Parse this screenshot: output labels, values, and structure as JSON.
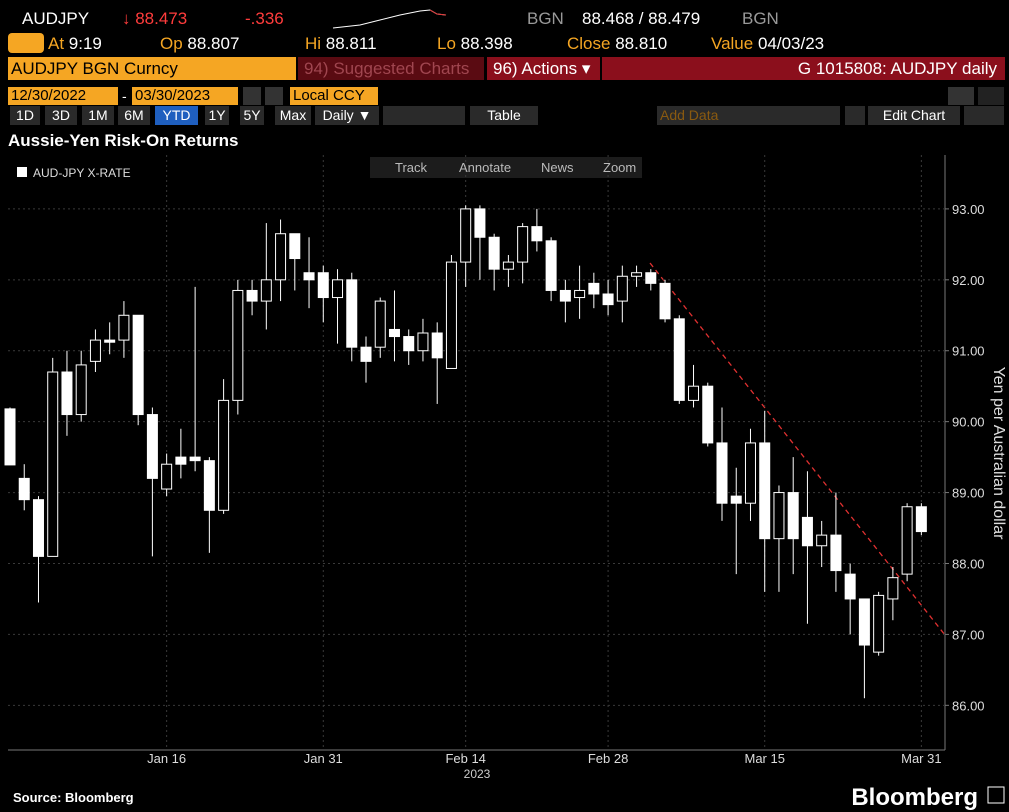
{
  "header": {
    "ticker": "AUDJPY",
    "price": "↓ 88.473",
    "change": "-.336",
    "source": "BGN",
    "bid_ask": "88.468 / 88.479",
    "source2": "BGN",
    "quote_fields": [
      {
        "label": "At",
        "value": "9:19"
      },
      {
        "label": "Op",
        "value": "88.807"
      },
      {
        "label": "Hi",
        "value": "88.811"
      },
      {
        "label": "Lo",
        "value": "88.398"
      },
      {
        "label": "Close",
        "value": "88.810"
      },
      {
        "label": "Value",
        "value": "04/03/23"
      }
    ],
    "security": "AUDJPY BGN Curncy",
    "suggested_num": "94)",
    "suggested": "Suggested Charts",
    "actions_num": "96)",
    "actions": "Actions ▾",
    "chart_id": "G 1015808: AUDJPY daily",
    "start_date": "12/30/2022",
    "date_sep": "-",
    "end_date": "03/30/2023",
    "currency": "Local CCY",
    "periods": [
      "1D",
      "3D",
      "1M",
      "6M",
      "YTD",
      "1Y",
      "5Y",
      "Max"
    ],
    "frequency": "Daily ▼",
    "table": "Table",
    "add_data": "Add Data",
    "edit_chart": "Edit Chart"
  },
  "toolbar": [
    "Track",
    "Annotate",
    "News",
    "Zoom"
  ],
  "chart_data": {
    "type": "candlestick",
    "title": "Aussie-Yen Risk-On Returns",
    "y_label": "Yen per Australian dollar",
    "x_sublabel": "2023",
    "categories": [
      null,
      null,
      null,
      null,
      null,
      null,
      null,
      null,
      null,
      null,
      null,
      "Jan 16",
      null,
      null,
      null,
      null,
      null,
      null,
      null,
      null,
      null,
      null,
      "Jan 31",
      null,
      null,
      null,
      null,
      null,
      null,
      null,
      null,
      null,
      "Feb 14",
      null,
      null,
      null,
      null,
      null,
      null,
      null,
      null,
      null,
      "Feb 28",
      null,
      null,
      null,
      null,
      null,
      null,
      null,
      null,
      null,
      null,
      "Mar 15",
      null,
      null,
      null,
      null,
      null,
      null,
      null,
      null,
      null,
      null,
      "Mar 31"
    ],
    "series": [
      {
        "name": "AUD-JPY X-RATE",
        "color": "#ffffff",
        "open": [
          90.18,
          89.2,
          88.9,
          88.1,
          90.7,
          90.1,
          90.85,
          91.15,
          91.15,
          91.5,
          90.1,
          89.05,
          89.5,
          89.5,
          89.45,
          88.75,
          90.3,
          91.85,
          91.7,
          92.0,
          92.65,
          92.1,
          92.1,
          91.75,
          92.0,
          91.05,
          91.05,
          91.3,
          91.2,
          91.0,
          91.25,
          90.75,
          92.25,
          93.0,
          92.6,
          92.15,
          92.25,
          92.75,
          92.55,
          91.85,
          91.75,
          91.95,
          91.8,
          91.7,
          92.05,
          92.1,
          91.95,
          91.45,
          90.3,
          90.5,
          89.7,
          88.95,
          88.85,
          89.7,
          88.35,
          89.0,
          88.65,
          88.25,
          88.4,
          87.85,
          87.5,
          86.75,
          87.5,
          87.85,
          88.8
        ],
        "high": [
          90.2,
          89.4,
          88.95,
          90.9,
          91.0,
          91.0,
          91.3,
          91.4,
          91.7,
          91.5,
          90.2,
          89.55,
          89.9,
          91.9,
          89.5,
          90.6,
          92.0,
          92.0,
          92.8,
          92.85,
          92.65,
          92.6,
          92.2,
          92.15,
          92.1,
          91.2,
          91.75,
          91.85,
          91.3,
          91.45,
          91.4,
          92.35,
          93.05,
          93.05,
          92.65,
          92.35,
          92.8,
          93.0,
          92.6,
          92.0,
          92.2,
          92.1,
          92.0,
          92.2,
          92.2,
          92.15,
          92.0,
          91.5,
          90.8,
          90.55,
          90.2,
          89.35,
          89.9,
          90.15,
          89.1,
          89.5,
          89.3,
          88.6,
          89.0,
          88.0,
          87.5,
          87.6,
          87.95,
          88.85,
          88.85
        ],
        "low": [
          89.4,
          88.75,
          87.45,
          88.1,
          89.8,
          90.0,
          90.7,
          90.95,
          90.9,
          89.95,
          88.1,
          88.95,
          89.2,
          89.3,
          88.15,
          88.7,
          90.1,
          91.5,
          91.3,
          91.7,
          91.85,
          91.6,
          91.4,
          91.1,
          90.85,
          90.55,
          90.9,
          90.85,
          90.8,
          90.85,
          90.25,
          90.75,
          91.9,
          92.0,
          91.85,
          91.9,
          91.95,
          92.4,
          91.7,
          91.4,
          91.45,
          91.6,
          91.5,
          91.4,
          91.9,
          91.85,
          91.4,
          90.25,
          90.2,
          89.65,
          88.6,
          87.85,
          88.6,
          87.6,
          87.6,
          87.85,
          87.15,
          87.95,
          87.6,
          87.0,
          86.1,
          86.7,
          87.2,
          87.75,
          88.4
        ],
        "close": [
          89.39,
          88.9,
          88.1,
          90.7,
          90.1,
          90.8,
          91.15,
          91.12,
          91.5,
          90.1,
          89.2,
          89.4,
          89.4,
          89.45,
          88.75,
          90.3,
          91.85,
          91.7,
          92.0,
          92.65,
          92.3,
          92.0,
          91.75,
          92.0,
          91.05,
          90.85,
          91.7,
          91.2,
          91.0,
          91.25,
          90.9,
          92.25,
          93.0,
          92.6,
          92.15,
          92.25,
          92.75,
          92.55,
          91.85,
          91.7,
          91.85,
          91.8,
          91.65,
          92.05,
          92.1,
          91.95,
          91.45,
          90.3,
          90.5,
          89.7,
          88.85,
          88.85,
          89.7,
          88.35,
          89.0,
          88.35,
          88.25,
          88.4,
          87.9,
          87.5,
          86.85,
          87.55,
          87.8,
          88.8,
          88.45
        ]
      }
    ],
    "ylim": [
      85.37,
      93.76
    ],
    "yticks": [
      {
        "value": 86,
        "label": "86.00"
      },
      {
        "value": 87,
        "label": "87.00"
      },
      {
        "value": 88,
        "label": "88.00"
      },
      {
        "value": 89,
        "label": "89.00"
      },
      {
        "value": 90,
        "label": "90.00"
      },
      {
        "value": 91,
        "label": "91.00"
      },
      {
        "value": 92,
        "label": "92.00"
      },
      {
        "value": 93,
        "label": "93.00"
      }
    ],
    "grid": true,
    "axis_side": "right"
  },
  "footer": {
    "source": "Source: Bloomberg",
    "brand": "Bloomberg"
  }
}
